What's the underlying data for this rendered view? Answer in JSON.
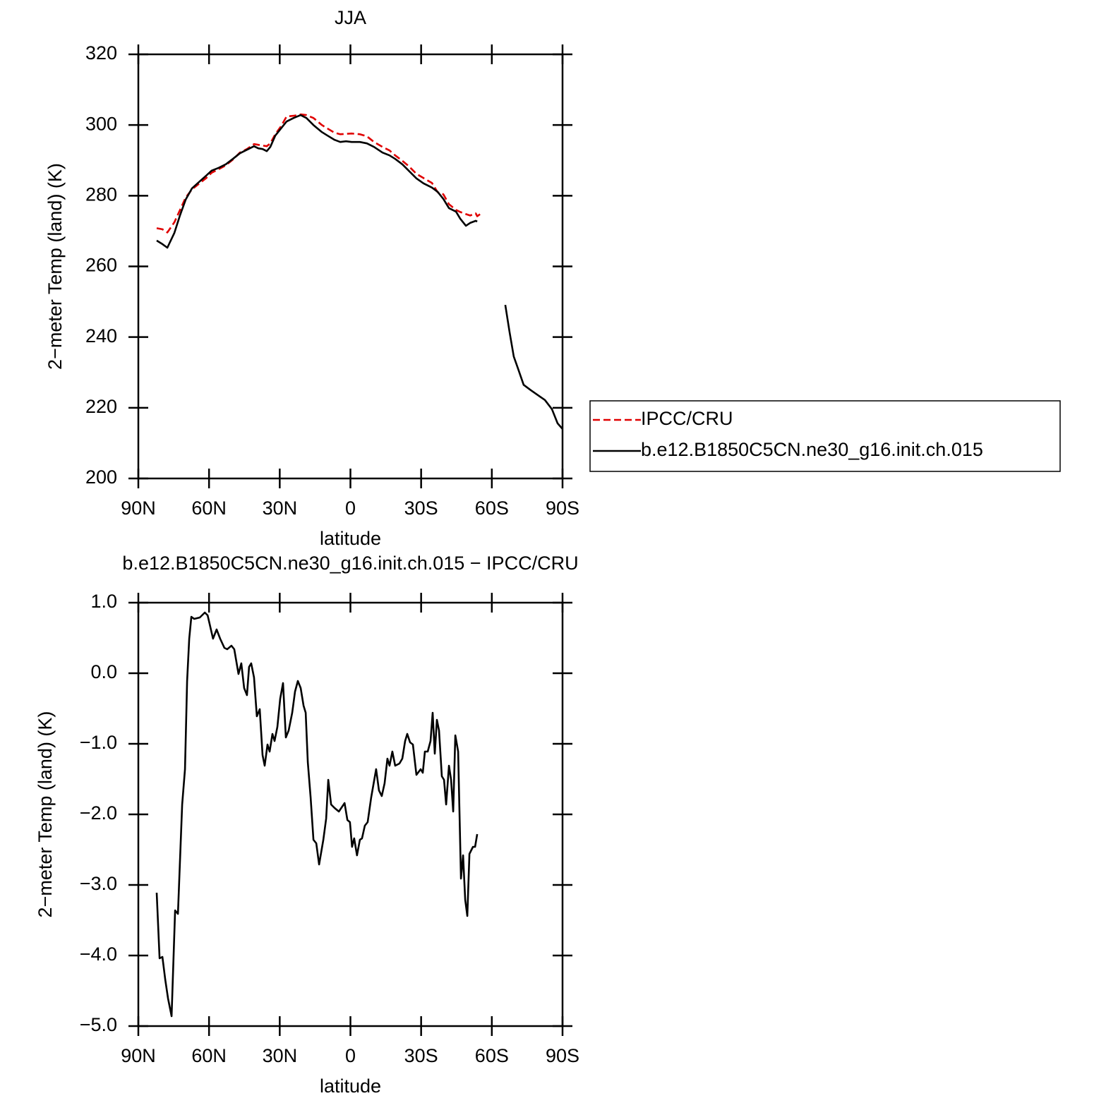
{
  "chart_data": [
    {
      "type": "line",
      "title": "JJA",
      "xlabel": "latitude",
      "ylabel": "2−meter Temp (land) (K)",
      "legend": "right",
      "grid": false,
      "xlim": [
        90,
        -90
      ],
      "ylim": [
        200,
        320
      ],
      "xticks": [
        {
          "value": 90,
          "label": "90N"
        },
        {
          "value": 60,
          "label": "60N"
        },
        {
          "value": 30,
          "label": "30N"
        },
        0,
        {
          "value": -30,
          "label": "30S"
        },
        {
          "value": -60,
          "label": "60S"
        },
        {
          "value": -90,
          "label": "90S"
        }
      ],
      "yticks": [
        200,
        220,
        240,
        260,
        280,
        300,
        320
      ],
      "x": [
        82.2,
        79.8,
        77.7,
        74.7,
        72.3,
        69.9,
        67.2,
        64.2,
        61.2,
        58.9,
        55.9,
        52.9,
        49.9,
        46.9,
        43.9,
        40.9,
        39.1,
        37.3,
        35.5,
        34.0,
        31.9,
        29.5,
        27.1,
        24.1,
        21.1,
        18.7,
        15.7,
        12.1,
        9.7,
        6.7,
        4.3,
        1.9,
        -0.5,
        -4.0,
        -7.0,
        -10.0,
        -13.6,
        -16.6,
        -19.0,
        -22.0,
        -25.0,
        -28.0,
        -31.0,
        -34.6,
        -37.0,
        -39.4,
        -41.8,
        -44.8,
        -46.6,
        -49.0,
        -50.8,
        -53.2,
        -53.8,
        -55.5,
        -65.7,
        -67.5,
        -69.3,
        -71.1,
        -73.5,
        -76.5,
        -79.5,
        -82.5,
        -85.5,
        -87.9,
        -90.0
      ],
      "series": [
        {
          "name": "IPCC/CRU",
          "color": "#e00000",
          "dash": true,
          "values": [
            270.8,
            270.5,
            269.6,
            272.5,
            276.0,
            279.5,
            281.8,
            283.4,
            285.0,
            286.5,
            287.5,
            288.6,
            290.2,
            292.2,
            293.2,
            294.6,
            294.4,
            294.2,
            294.0,
            294.8,
            297.4,
            299.6,
            302.4,
            302.6,
            303.0,
            302.8,
            302.0,
            300.0,
            299.0,
            297.8,
            297.4,
            297.5,
            297.6,
            297.4,
            296.8,
            295.2,
            293.8,
            292.8,
            291.4,
            289.9,
            288.2,
            286.2,
            285.0,
            283.6,
            281.0,
            280.4,
            277.6,
            276.0,
            275.4,
            274.8,
            274.4,
            275.0,
            274.2,
            275.0,
            null,
            null,
            null,
            null,
            null,
            null,
            null,
            null,
            null,
            null,
            null
          ]
        },
        {
          "name": "b.e12.B1850C5CN.ne30_g16.init.ch.015",
          "color": "#000000",
          "dash": false,
          "values": [
            267.3,
            266.3,
            265.3,
            269.5,
            274.5,
            278.9,
            282.1,
            283.9,
            285.7,
            287.1,
            287.9,
            288.9,
            290.4,
            292.0,
            293.0,
            294.0,
            293.4,
            293.2,
            292.6,
            293.8,
            297.0,
            299.0,
            301.0,
            302.0,
            302.8,
            302.0,
            300.0,
            298.0,
            297.0,
            295.8,
            295.2,
            295.4,
            295.2,
            295.2,
            294.8,
            293.8,
            292.2,
            291.4,
            290.4,
            288.9,
            286.9,
            284.9,
            283.5,
            282.3,
            281.1,
            279.1,
            276.5,
            275.5,
            273.5,
            271.5,
            272.3,
            272.9,
            272.7,
            null,
            249.1,
            241.5,
            234.5,
            231.1,
            226.5,
            225.0,
            223.6,
            222.2,
            219.6,
            215.6,
            214.0
          ]
        }
      ]
    },
    {
      "type": "line",
      "title": "b.e12.B1850C5CN.ne30_g16.init.ch.015 − IPCC/CRU",
      "xlabel": "latitude",
      "ylabel": "2−meter Temp (land) (K)",
      "grid": false,
      "xlim": [
        90,
        -90
      ],
      "ylim": [
        -5,
        1
      ],
      "xticks": [
        {
          "value": 90,
          "label": "90N"
        },
        {
          "value": 60,
          "label": "60N"
        },
        {
          "value": 30,
          "label": "30N"
        },
        0,
        {
          "value": -30,
          "label": "30S"
        },
        {
          "value": -60,
          "label": "60S"
        },
        {
          "value": -90,
          "label": "90S"
        }
      ],
      "yticks": [
        {
          "value": -5,
          "label": "−5.0"
        },
        {
          "value": -4,
          "label": "−4.0"
        },
        {
          "value": -3,
          "label": "−3.0"
        },
        {
          "value": -2,
          "label": "−2.0"
        },
        {
          "value": -1,
          "label": "−1.0"
        },
        {
          "value": 0,
          "label": "0.0"
        },
        {
          "value": 1,
          "label": "1.0"
        }
      ],
      "x": [
        82.2,
        81.0,
        79.8,
        78.6,
        77.4,
        75.9,
        74.4,
        73.2,
        71.4,
        70.2,
        69.3,
        68.4,
        67.5,
        66.3,
        63.9,
        61.8,
        60.6,
        58.3,
        56.8,
        55.3,
        53.5,
        52.3,
        50.5,
        49.3,
        47.5,
        46.3,
        45.1,
        43.9,
        43.0,
        42.1,
        40.9,
        39.7,
        38.5,
        37.3,
        36.4,
        35.2,
        34.3,
        33.1,
        32.2,
        31.0,
        29.8,
        28.6,
        27.4,
        26.2,
        24.7,
        23.5,
        22.3,
        21.1,
        19.9,
        19.0,
        18.1,
        16.9,
        15.7,
        14.5,
        13.3,
        11.5,
        10.3,
        9.4,
        8.2,
        6.7,
        4.9,
        2.5,
        1.3,
        0.2,
        -0.7,
        -1.6,
        -2.8,
        -4.0,
        -4.9,
        -6.1,
        -7.3,
        -8.8,
        -10.9,
        -12.1,
        -13.3,
        -14.5,
        -15.7,
        -16.6,
        -17.8,
        -19.0,
        -20.8,
        -22.0,
        -23.2,
        -24.1,
        -25.3,
        -26.5,
        -28.0,
        -29.8,
        -30.7,
        -31.6,
        -32.8,
        -34.0,
        -34.9,
        -35.8,
        -36.7,
        -37.6,
        -38.8,
        -39.7,
        -40.6,
        -41.8,
        -42.7,
        -43.6,
        -44.5,
        -45.7,
        -46.9,
        -47.8,
        -48.7,
        -49.6,
        -50.5,
        -52.0,
        -52.9,
        -53.8
      ],
      "series": [
        {
          "name": "b.e12.B1850C5CN.ne30_g16.init.ch.015 − IPCC/CRU",
          "color": "#000000",
          "dash": false,
          "values": [
            -3.11,
            -4.04,
            -4.02,
            -4.34,
            -4.61,
            -4.86,
            -3.36,
            -3.41,
            -1.86,
            -1.36,
            -0.11,
            0.49,
            0.8,
            0.77,
            0.79,
            0.86,
            0.82,
            0.49,
            0.62,
            0.49,
            0.36,
            0.34,
            0.39,
            0.34,
            -0.01,
            0.14,
            -0.21,
            -0.31,
            0.09,
            0.14,
            -0.06,
            -0.61,
            -0.51,
            -1.16,
            -1.31,
            -1.01,
            -1.11,
            -0.86,
            -0.96,
            -0.76,
            -0.36,
            -0.14,
            -0.91,
            -0.81,
            -0.56,
            -0.26,
            -0.11,
            -0.21,
            -0.46,
            -0.56,
            -1.26,
            -1.76,
            -2.36,
            -2.41,
            -2.71,
            -2.36,
            -2.06,
            -1.51,
            -1.86,
            -1.91,
            -1.96,
            -1.84,
            -2.08,
            -2.11,
            -2.46,
            -2.34,
            -2.58,
            -2.36,
            -2.34,
            -2.16,
            -2.11,
            -1.76,
            -1.36,
            -1.66,
            -1.74,
            -1.56,
            -1.21,
            -1.31,
            -1.11,
            -1.31,
            -1.28,
            -1.21,
            -0.96,
            -0.86,
            -0.98,
            -1.01,
            -1.44,
            -1.36,
            -1.41,
            -1.11,
            -1.11,
            -0.96,
            -0.56,
            -1.14,
            -0.66,
            -0.81,
            -1.46,
            -1.51,
            -1.86,
            -1.31,
            -1.51,
            -1.96,
            -0.88,
            -1.11,
            -2.91,
            -2.58,
            -3.21,
            -3.44,
            -2.56,
            -2.46,
            -2.46,
            -2.28
          ]
        }
      ]
    }
  ]
}
